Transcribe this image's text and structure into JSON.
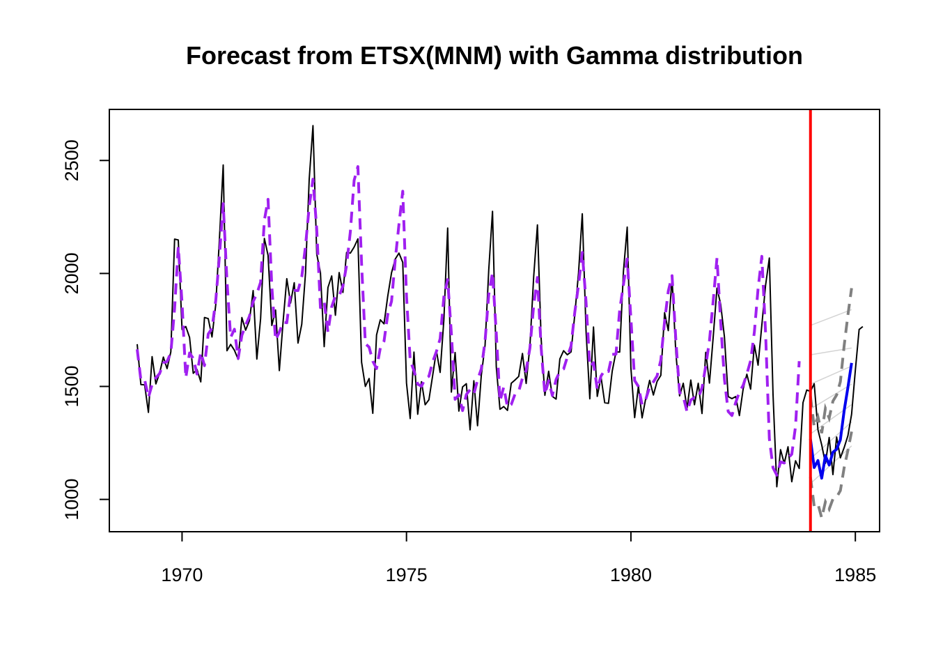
{
  "chart_data": {
    "type": "line",
    "title": "Forecast from ETSX(MNM) with Gamma distribution",
    "xlabel": "",
    "ylabel": "",
    "xlim": [
      1968.38,
      1985.54
    ],
    "ylim": [
      857,
      2726
    ],
    "x_ticks": [
      1970,
      1975,
      1980,
      1985
    ],
    "y_ticks": [
      1000,
      1500,
      2000,
      2500
    ],
    "x_tick_labels": [
      "1970",
      "1975",
      "1980",
      "1985"
    ],
    "y_tick_labels": [
      "1000",
      "1500",
      "2000",
      "2500"
    ],
    "grid": false,
    "legend": "none",
    "colors": {
      "actual": "#000000",
      "fitted": "#a020f0",
      "forecast": "#0000ee",
      "interval": "#808080",
      "interval_fan": "#d3d3d3",
      "holdout_divider": "#ff0000"
    },
    "series": [
      {
        "role": "actual",
        "start": 1969.0,
        "step": 0.08333333,
        "values": [
          1687,
          1508,
          1507,
          1385,
          1632,
          1511,
          1559,
          1630,
          1579,
          1653,
          2152,
          2148,
          1752,
          1765,
          1717,
          1558,
          1575,
          1520,
          1805,
          1800,
          1719,
          1862,
          2154,
          2480,
          1658,
          1686,
          1660,
          1620,
          1805,
          1749,
          1791,
          1924,
          1621,
          1800,
          2155,
          2080,
          1770,
          1838,
          1570,
          1783,
          1977,
          1869,
          1959,
          1692,
          1775,
          2002,
          2418,
          2654,
          2086,
          2004,
          1676,
          1938,
          1989,
          1815,
          2004,
          1916,
          2093,
          2090,
          2117,
          2153,
          1607,
          1500,
          1535,
          1381,
          1728,
          1795,
          1777,
          1900,
          2003,
          2064,
          2090,
          2049,
          1515,
          1358,
          1652,
          1377,
          1521,
          1419,
          1441,
          1549,
          1658,
          1562,
          1797,
          2201,
          1475,
          1650,
          1391,
          1498,
          1512,
          1308,
          1525,
          1326,
          1549,
          1682,
          2016,
          2275,
          1587,
          1399,
          1411,
          1394,
          1514,
          1528,
          1544,
          1646,
          1513,
          1679,
          1985,
          2215,
          1712,
          1461,
          1567,
          1456,
          1444,
          1622,
          1658,
          1640,
          1653,
          1820,
          2002,
          2264,
          1746,
          1445,
          1763,
          1456,
          1542,
          1428,
          1425,
          1568,
          1653,
          1652,
          2009,
          2205,
          1582,
          1362,
          1501,
          1361,
          1450,
          1527,
          1462,
          1522,
          1549,
          1826,
          1747,
          1979,
          1650,
          1458,
          1514,
          1402,
          1528,
          1419,
          1514,
          1380,
          1651,
          1515,
          1719,
          1935,
          1864,
          1720,
          1455,
          1446,
          1455,
          1371,
          1489,
          1554,
          1488,
          1683,
          1594,
          1771,
          1948,
          2068,
          1464,
          1056,
          1220,
          1159,
          1233,
          1078,
          1171,
          1137,
          1428,
          1484,
          1478,
          1512,
          1308,
          1241,
          1160,
          1274,
          1110,
          1276,
          1184,
          1229,
          1282,
          1377,
          1572,
          1752,
          1765
        ]
      },
      {
        "role": "fitted",
        "start": 1969.0,
        "step": 0.08333333,
        "values": [
          1664,
          1528,
          1530,
          1451,
          1508,
          1538,
          1557,
          1604,
          1610,
          1649,
          1845,
          2118,
          1870,
          1538,
          1648,
          1624,
          1555,
          1651,
          1592,
          1732,
          1757,
          1880,
          2078,
          2309,
          1968,
          1717,
          1753,
          1624,
          1726,
          1771,
          1810,
          1876,
          1910,
          1961,
          2235,
          2328,
          1941,
          1705,
          1741,
          1784,
          1782,
          1911,
          1925,
          1924,
          1985,
          2122,
          2296,
          2417,
          2196,
          1849,
          1876,
          1740,
          1853,
          1901,
          1901,
          1944,
          2037,
          2186,
          2412,
          2473,
          2042,
          1689,
          1674,
          1612,
          1579,
          1670,
          1700,
          1819,
          1877,
          2063,
          2218,
          2364,
          1899,
          1615,
          1570,
          1510,
          1501,
          1535,
          1545,
          1609,
          1654,
          1711,
          1898,
          1973,
          1736,
          1443,
          1463,
          1393,
          1464,
          1486,
          1467,
          1528,
          1578,
          1701,
          1907,
          2004,
          1736,
          1435,
          1497,
          1408,
          1420,
          1465,
          1478,
          1537,
          1570,
          1670,
          1858,
          1982,
          1671,
          1465,
          1526,
          1460,
          1531,
          1566,
          1577,
          1630,
          1680,
          1830,
          1949,
          2093,
          1874,
          1588,
          1605,
          1487,
          1546,
          1572,
          1566,
          1642,
          1643,
          1838,
          1951,
          2064,
          1801,
          1526,
          1500,
          1419,
          1445,
          1497,
          1520,
          1546,
          1617,
          1789,
          1922,
          1990,
          1708,
          1474,
          1455,
          1388,
          1440,
          1451,
          1449,
          1494,
          1591,
          1702,
          1879,
          2068,
          1785,
          1532,
          1389,
          1371,
          1428,
          1475,
          1505,
          1555,
          1614,
          1741,
          1932,
          2076,
          1737,
          1269,
          1140,
          1107,
          1166,
          1161,
          1182,
          1200,
          1323,
          1612
        ]
      },
      {
        "role": "forecast",
        "start": 1984.0,
        "step": 0.08333333,
        "values": [
          1268,
          1141,
          1172,
          1094,
          1194,
          1152,
          1209,
          1222,
          1264,
          1392,
          1495,
          1604
        ]
      },
      {
        "role": "interval_upper",
        "start": 1984.0,
        "step": 0.08333333,
        "values": [
          1457,
          1321,
          1365,
          1293,
          1403,
          1360,
          1435,
          1462,
          1521,
          1680,
          1816,
          1935
        ]
      },
      {
        "role": "interval_lower",
        "start": 1984.0,
        "step": 0.08333333,
        "values": [
          1099,
          970,
          980,
          918,
          989,
          957,
          1002,
          1010,
          1039,
          1140,
          1217,
          1300
        ]
      },
      {
        "role": "interval_fan",
        "start": 1984.0,
        "step": 0.91666667,
        "lines": [
          [
            1070,
            1237
          ],
          [
            1180,
            1343
          ],
          [
            1290,
            1420
          ],
          [
            1400,
            1510
          ],
          [
            1510,
            1590
          ],
          [
            1640,
            1670
          ],
          [
            1770,
            1840
          ]
        ]
      }
    ],
    "holdout_divider_x": 1984.0
  }
}
